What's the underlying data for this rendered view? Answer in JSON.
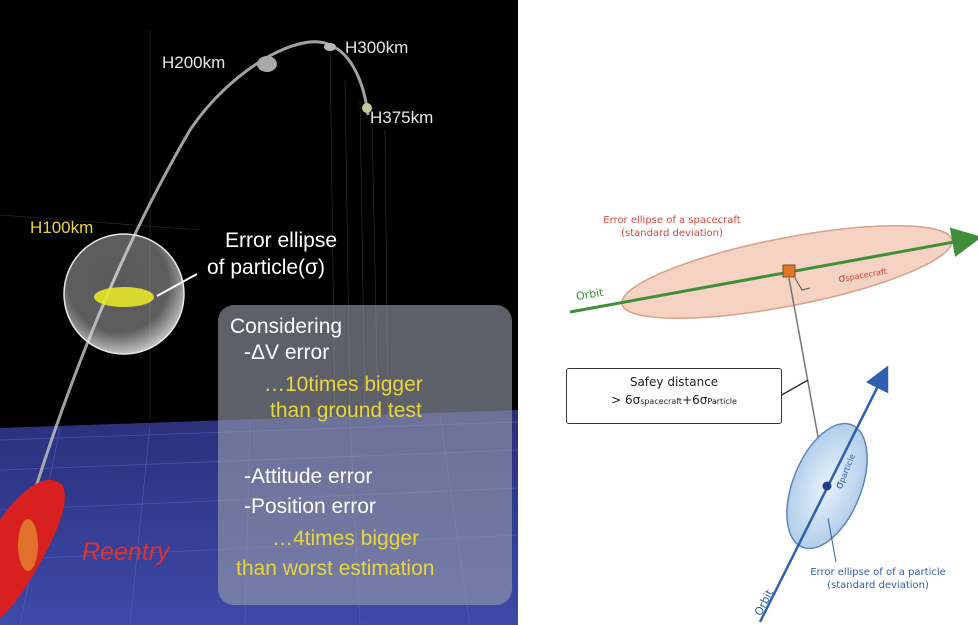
{
  "left": {
    "altitudes": [
      "H200km",
      "H300km",
      "H375km",
      "H100km"
    ],
    "ellipse_label": [
      "Error ellipse",
      "of particle(σ)"
    ],
    "panel": {
      "heading": "Considering",
      "dv": "-ΔV error",
      "dv_note1": "…10times bigger",
      "dv_note2": "than ground test",
      "attitude": "-Attitude error",
      "position": "-Position error",
      "pos_note1": "…4times bigger",
      "pos_note2": "than worst estimation"
    },
    "reentry": "Reentry"
  },
  "right": {
    "spacecraft_label1": "Error ellipse of a spacecraft",
    "spacecraft_label2": "(standard deviation)",
    "orbit_top": "Orbit",
    "sigma_spacecraft": "σ",
    "sigma_spacecraft_sub": "spacecraft",
    "safety_title": "Safey distance",
    "safety_prefix": "> 6σ",
    "safety_sub1": "spacecraft",
    "safety_mid": "+6σ",
    "safety_sub2": "Particle",
    "sigma_particle": "σ",
    "sigma_particle_sub": "particle",
    "particle_label1": "Error ellipse of of a particle",
    "particle_label2": "(standard deviation)",
    "orbit_bottom": "Orbit"
  },
  "colors": {
    "red": "#d9443e",
    "green": "#3f8f3a",
    "blue": "#2f5fb0",
    "yellow": "#e8d63a",
    "reentry": "#e03030"
  }
}
